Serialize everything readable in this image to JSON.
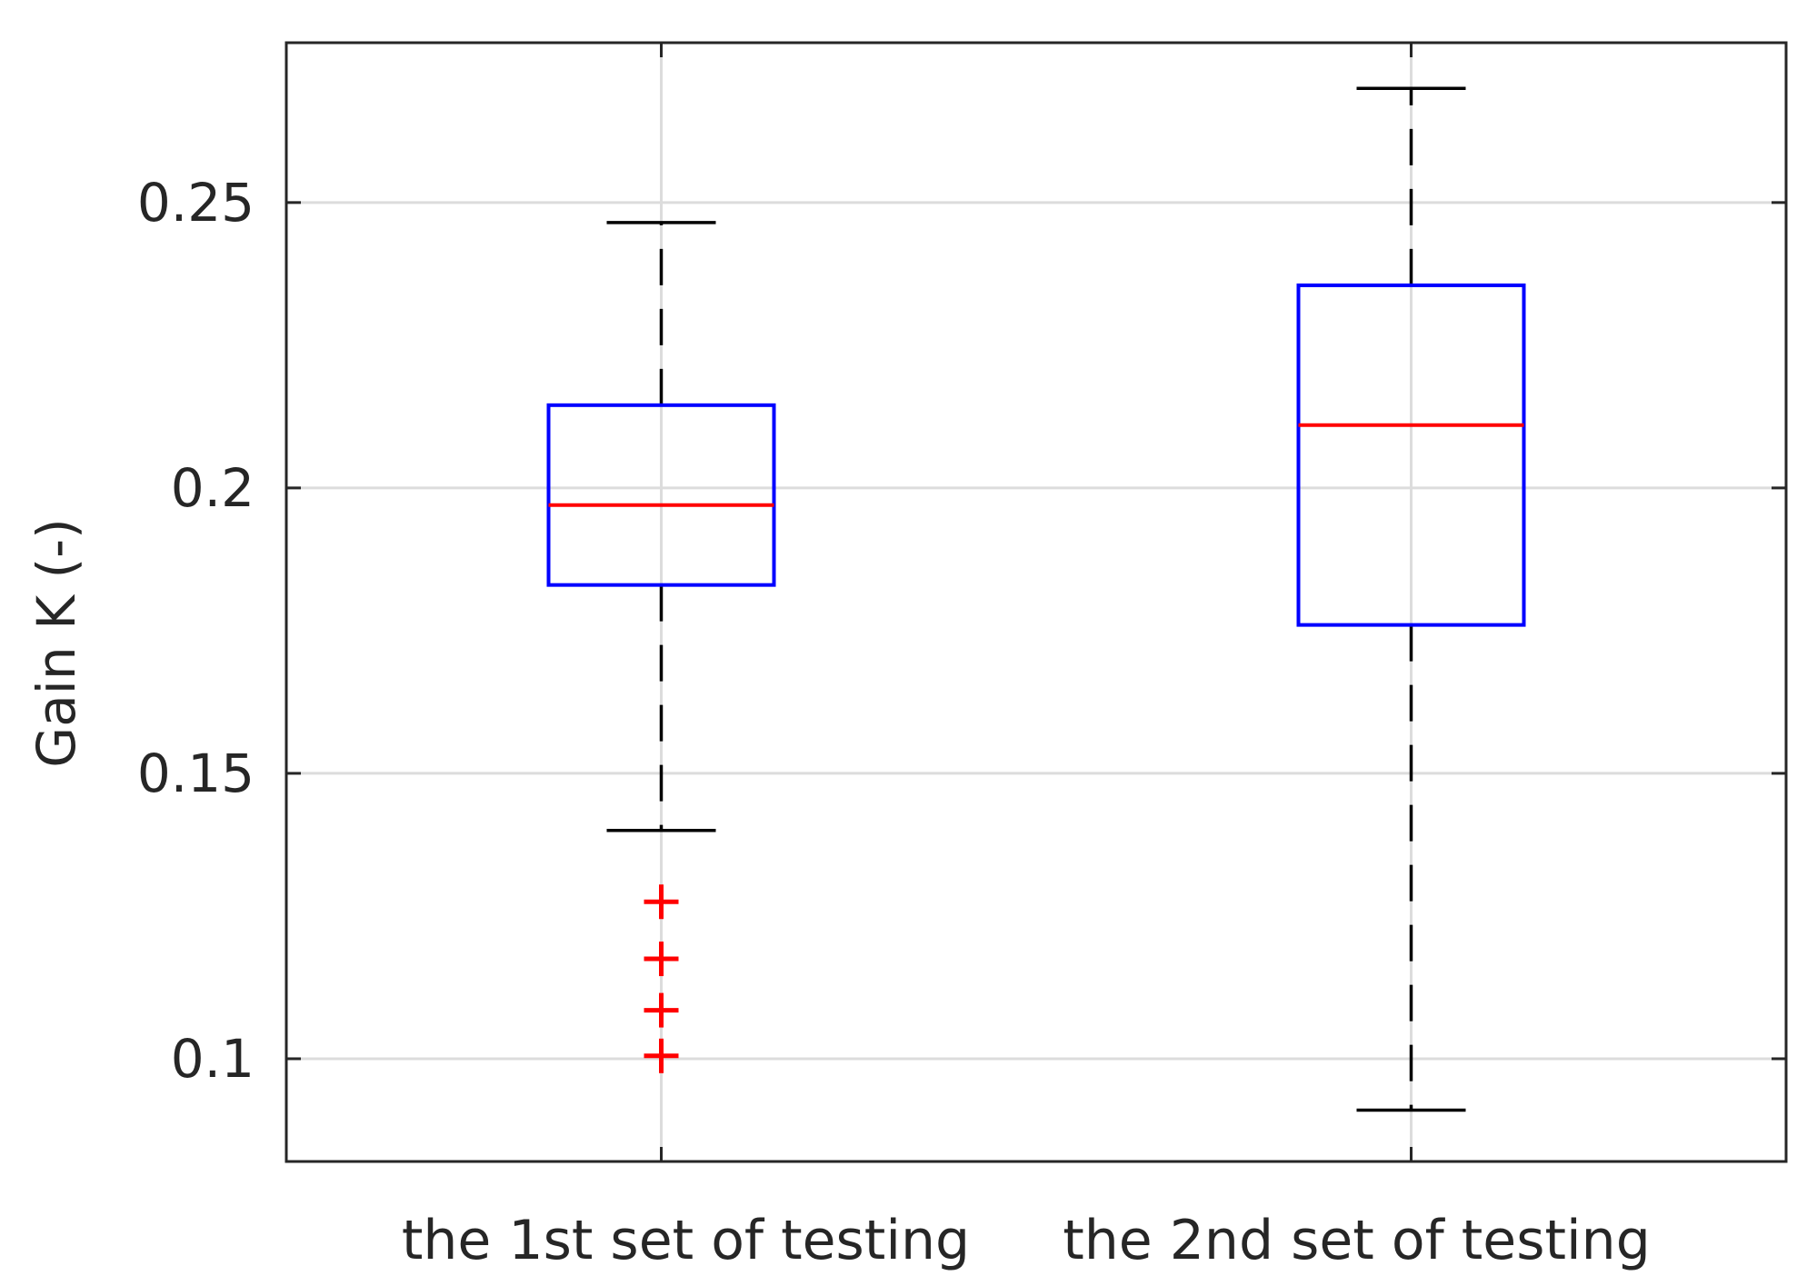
{
  "chart_data": {
    "type": "box",
    "title": "",
    "xlabel": "",
    "ylabel": "Gain K (-)",
    "ylim": [
      0.082,
      0.278
    ],
    "yticks": [
      0.1,
      0.15,
      0.2,
      0.25
    ],
    "ytick_labels": [
      "0.1",
      "0.15",
      "0.2",
      "0.25"
    ],
    "grid": true,
    "categories": [
      "the 1st set of testing",
      "the 2nd set of testing"
    ],
    "boxes": [
      {
        "label": "the 1st set of testing",
        "whisker_low": 0.14,
        "q1": 0.183,
        "median": 0.197,
        "q3": 0.2145,
        "whisker_high": 0.2465,
        "outliers": [
          0.1275,
          0.1175,
          0.1085,
          0.1005
        ]
      },
      {
        "label": "the 2nd set of testing",
        "whisker_low": 0.091,
        "q1": 0.176,
        "median": 0.211,
        "q3": 0.2355,
        "whisker_high": 0.27,
        "outliers": []
      }
    ],
    "colors": {
      "box": "#0000ff",
      "median": "#ff0000",
      "whisker": "#000000",
      "outlier": "#ff0000",
      "grid": "#dcdcdc",
      "axes": "#262626"
    }
  }
}
